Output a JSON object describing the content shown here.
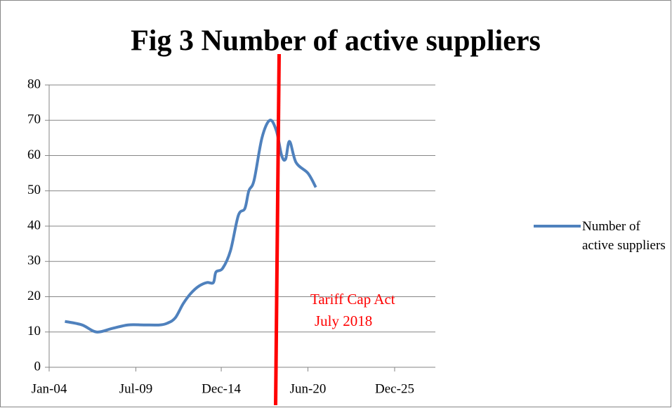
{
  "chart_data": {
    "type": "line",
    "title": "Fig 3 Number of active suppliers",
    "x": [
      "2005-01",
      "2006-02",
      "2007-01",
      "2008-01",
      "2009-01",
      "2010-01",
      "2011-01",
      "2011-07",
      "2012-01",
      "2012-07",
      "2013-01",
      "2013-07",
      "2014-01",
      "2014-06",
      "2014-08",
      "2015-01",
      "2015-07",
      "2016-01",
      "2016-06",
      "2016-09",
      "2017-01",
      "2017-07",
      "2018-01",
      "2018-06",
      "2018-10",
      "2019-01",
      "2019-04",
      "2019-09",
      "2020-06",
      "2020-12"
    ],
    "series": [
      {
        "name": "Number of active suppliers",
        "color": "#4f81bd",
        "values": [
          13,
          12,
          10,
          11,
          12,
          12,
          12,
          12.5,
          14,
          18,
          21,
          23,
          24,
          24,
          27,
          28,
          33,
          43,
          45,
          50,
          53,
          65,
          70,
          67,
          60,
          59,
          64,
          58,
          55,
          51
        ]
      }
    ],
    "xlim": [
      "2004-01",
      "2028-07"
    ],
    "xticks": [
      {
        "value": "2004-01",
        "label": "Jan-04"
      },
      {
        "value": "2009-07",
        "label": "Jul-09"
      },
      {
        "value": "2014-12",
        "label": "Dec-14"
      },
      {
        "value": "2020-06",
        "label": "Jun-20"
      },
      {
        "value": "2025-12",
        "label": "Dec-25"
      }
    ],
    "ylim": [
      0,
      80
    ],
    "yticks": [
      0,
      10,
      20,
      30,
      40,
      50,
      60,
      70,
      80
    ],
    "grid": true,
    "legend": "right",
    "vline": {
      "x": "2018-07",
      "color": "#ff0000"
    },
    "annotation": [
      "Tariff Cap Act",
      "July 2018"
    ]
  }
}
